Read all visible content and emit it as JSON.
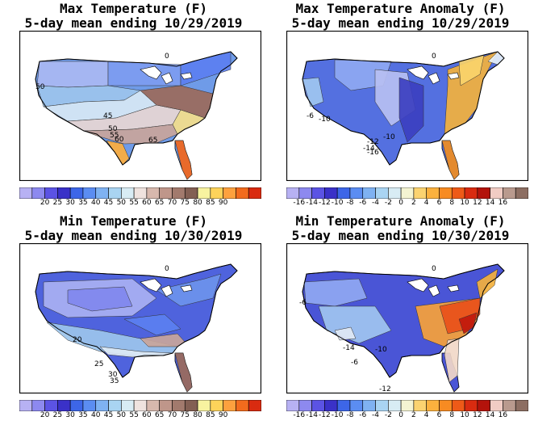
{
  "panels": [
    {
      "title_line1": "Max Temperature (F)",
      "title_line2": "5-day mean ending 10/29/2019",
      "kind": "temp",
      "bg": "#6f9be8",
      "zones": [
        {
          "color": "#a9b9f2"
        },
        {
          "color": "#7d9cf0"
        },
        {
          "color": "#5b7ff0"
        },
        {
          "color": "#9cc4ec"
        },
        {
          "color": "#d7e8f4"
        },
        {
          "color": "#e8d7d2"
        },
        {
          "color": "#c9a59a"
        },
        {
          "color": "#9b6a5a"
        },
        {
          "color": "#f5e08a"
        },
        {
          "color": "#fdae3c"
        },
        {
          "color": "#f2661a"
        }
      ],
      "labels": [
        "50",
        "45",
        "50",
        "55",
        "60",
        "65",
        "0"
      ]
    },
    {
      "title_line1": "Max Temperature Anomaly (F)",
      "title_line2": "5-day mean ending 10/29/2019",
      "kind": "anom",
      "bg": "#5470e0",
      "zones": [
        {
          "color": "#8fa8f2"
        },
        {
          "color": "#b7bff2"
        },
        {
          "color": "#3c3fc0"
        },
        {
          "color": "#a0c6f0"
        },
        {
          "color": "#f3b13d"
        },
        {
          "color": "#fad26a"
        },
        {
          "color": "#f08c1e"
        },
        {
          "color": "#e7f1f8"
        }
      ],
      "labels": [
        "-6",
        "-10",
        "-12",
        "-14",
        "-16",
        "-10",
        "0"
      ]
    },
    {
      "title_line1": "Min Temperature (F)",
      "title_line2": "5-day mean ending 10/30/2019",
      "kind": "temp",
      "bg": "#4f63dd",
      "zones": [
        {
          "color": "#a9b0f2"
        },
        {
          "color": "#8088ee"
        },
        {
          "color": "#6d92ec"
        },
        {
          "color": "#9cc4ec"
        },
        {
          "color": "#dde9f4"
        },
        {
          "color": "#c9a59a"
        },
        {
          "color": "#9b6a5a"
        },
        {
          "color": "#5b7ff0"
        }
      ],
      "labels": [
        "20",
        "25",
        "30",
        "35",
        "0"
      ]
    },
    {
      "title_line1": "Min Temperature Anomaly (F)",
      "title_line2": "5-day mean ending 10/30/2019",
      "kind": "anom",
      "bg": "#4a55d6",
      "zones": [
        {
          "color": "#8fa8f2"
        },
        {
          "color": "#a0c6f0"
        },
        {
          "color": "#f6a23a"
        },
        {
          "color": "#e8501a"
        },
        {
          "color": "#c0180c"
        },
        {
          "color": "#f1d8c8"
        },
        {
          "color": "#f3b13d"
        },
        {
          "color": "#e0e8f4"
        }
      ],
      "labels": [
        "-6",
        "-14",
        "-10",
        "-6",
        "-12",
        "0"
      ]
    }
  ],
  "temp_legend": {
    "colors": [
      "#b7b1f3",
      "#8d89ef",
      "#5b53e4",
      "#3a31c8",
      "#3d66e8",
      "#5b8df2",
      "#7fb2f2",
      "#a9d4f2",
      "#d8ecf4",
      "#efe3df",
      "#d7b8ad",
      "#bf968a",
      "#a27a6d",
      "#835f53",
      "#f8f3a0",
      "#fdd35a",
      "#fda13e",
      "#f26b1d",
      "#d92b10"
    ],
    "ticks": [
      "20",
      "25",
      "30",
      "35",
      "40",
      "45",
      "50",
      "55",
      "60",
      "65",
      "70",
      "75",
      "80",
      "85",
      "90"
    ]
  },
  "anom_legend": {
    "colors": [
      "#b7b1f3",
      "#8d89ef",
      "#5b53e4",
      "#3a31c8",
      "#3d66e8",
      "#5b8df2",
      "#7fb2f2",
      "#a9d4f2",
      "#d8ecf4",
      "#f4f4d2",
      "#fbd370",
      "#fbb13e",
      "#f78b22",
      "#ee5a18",
      "#d92b10",
      "#b3130b",
      "#f1ccc4",
      "#b99a8e",
      "#8d6e62"
    ],
    "ticks": [
      "-16",
      "-14",
      "-12",
      "-10",
      "-8",
      "-6",
      "-4",
      "-2",
      "0",
      "2",
      "4",
      "6",
      "8",
      "10",
      "12",
      "14",
      "16"
    ]
  }
}
